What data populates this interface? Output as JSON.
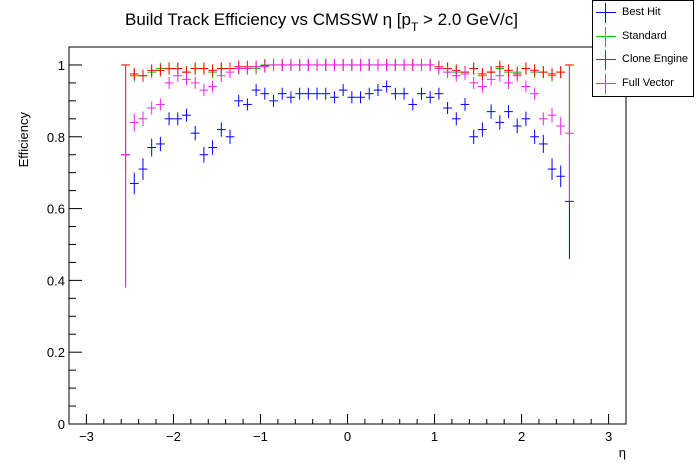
{
  "chart_data": {
    "type": "scatter",
    "title": "Build Track Efficiency vs CMSSW η [p",
    "title_sub": "T",
    "title_tail": " > 2.0 GeV/c]",
    "xlabel": "η",
    "ylabel": "Efficiency",
    "xlim": [
      -3.2,
      3.2
    ],
    "ylim": [
      0,
      1.05
    ],
    "x_ticks": [
      -3,
      -2,
      -1,
      0,
      1,
      2,
      3
    ],
    "x_tick_labels": [
      "−3",
      "−2",
      "−1",
      "0",
      "1",
      "2",
      "3"
    ],
    "y_ticks": [
      0,
      0.2,
      0.4,
      0.6,
      0.8,
      1
    ],
    "y_tick_labels": [
      "0",
      "0.2",
      "0.4",
      "0.6",
      "0.8",
      "1"
    ],
    "grid": false,
    "legend_position": "top-right",
    "bin_half_width": 0.05,
    "series": [
      {
        "name": "Best Hit",
        "color": "#0000ff",
        "x": [
          -2.55,
          -2.45,
          -2.35,
          -2.25,
          -2.15,
          -2.05,
          -1.95,
          -1.85,
          -1.75,
          -1.65,
          -1.55,
          -1.45,
          -1.35,
          -1.25,
          -1.15,
          -1.05,
          -0.95,
          -0.85,
          -0.75,
          -0.65,
          -0.55,
          -0.45,
          -0.35,
          -0.25,
          -0.15,
          -0.05,
          0.05,
          0.15,
          0.25,
          0.35,
          0.45,
          0.55,
          0.65,
          0.75,
          0.85,
          0.95,
          1.05,
          1.15,
          1.25,
          1.35,
          1.45,
          1.55,
          1.65,
          1.75,
          1.85,
          1.95,
          2.05,
          2.15,
          2.25,
          2.35,
          2.45,
          2.55
        ],
        "y": [
          0.75,
          0.67,
          0.71,
          0.77,
          0.78,
          0.85,
          0.85,
          0.86,
          0.81,
          0.75,
          0.77,
          0.82,
          0.8,
          0.9,
          0.89,
          0.93,
          0.92,
          0.9,
          0.92,
          0.91,
          0.92,
          0.92,
          0.92,
          0.92,
          0.91,
          0.93,
          0.91,
          0.91,
          0.92,
          0.93,
          0.94,
          0.92,
          0.92,
          0.89,
          0.92,
          0.91,
          0.92,
          0.88,
          0.85,
          0.89,
          0.8,
          0.82,
          0.87,
          0.84,
          0.87,
          0.83,
          0.85,
          0.8,
          0.78,
          0.71,
          0.69,
          0.62
        ],
        "yerr": [
          0.37,
          0.03,
          0.03,
          0.025,
          0.02,
          0.018,
          0.018,
          0.018,
          0.02,
          0.022,
          0.02,
          0.02,
          0.02,
          0.015,
          0.015,
          0.012,
          0.012,
          0.012,
          0.012,
          0.012,
          0.012,
          0.012,
          0.012,
          0.012,
          0.012,
          0.012,
          0.012,
          0.012,
          0.012,
          0.012,
          0.012,
          0.012,
          0.012,
          0.012,
          0.012,
          0.012,
          0.015,
          0.015,
          0.018,
          0.018,
          0.02,
          0.02,
          0.02,
          0.02,
          0.018,
          0.02,
          0.02,
          0.02,
          0.025,
          0.03,
          0.03,
          0.16
        ]
      },
      {
        "name": "Standard",
        "color": "#00cc00",
        "x": [
          -2.55,
          -2.45,
          -2.35,
          -2.25,
          -2.15,
          -2.05,
          -1.95,
          -1.85,
          -1.75,
          -1.65,
          -1.55,
          -1.45,
          -1.35,
          -1.25,
          -1.15,
          -1.05,
          -0.95,
          -0.85,
          -0.75,
          -0.65,
          -0.55,
          -0.45,
          -0.35,
          -0.25,
          -0.15,
          -0.05,
          0.05,
          0.15,
          0.25,
          0.35,
          0.45,
          0.55,
          0.65,
          0.75,
          0.85,
          0.95,
          1.05,
          1.15,
          1.25,
          1.35,
          1.45,
          1.55,
          1.65,
          1.75,
          1.85,
          1.95,
          2.05,
          2.15,
          2.25,
          2.35,
          2.45,
          2.55
        ],
        "y": [
          1.0,
          0.97,
          0.97,
          0.98,
          0.99,
          0.99,
          0.99,
          0.98,
          0.99,
          0.99,
          0.98,
          0.99,
          0.99,
          0.99,
          0.99,
          0.99,
          1.0,
          1.0,
          1.0,
          1.0,
          1.0,
          1.0,
          1.0,
          1.0,
          1.0,
          1.0,
          1.0,
          1.0,
          1.0,
          1.0,
          1.0,
          1.0,
          1.0,
          1.0,
          1.0,
          1.0,
          0.99,
          0.99,
          0.98,
          0.98,
          0.99,
          0.97,
          0.98,
          0.99,
          0.98,
          0.98,
          0.99,
          0.98,
          0.98,
          0.97,
          0.98,
          1.0
        ],
        "yerr": [
          0.3,
          0.008,
          0.008,
          0.006,
          0.005,
          0.005,
          0.005,
          0.005,
          0.005,
          0.005,
          0.005,
          0.005,
          0.004,
          0.004,
          0.004,
          0.003,
          0.003,
          0.003,
          0.003,
          0.003,
          0.003,
          0.003,
          0.003,
          0.003,
          0.003,
          0.003,
          0.003,
          0.003,
          0.003,
          0.003,
          0.003,
          0.003,
          0.003,
          0.003,
          0.003,
          0.003,
          0.004,
          0.004,
          0.004,
          0.005,
          0.005,
          0.005,
          0.005,
          0.005,
          0.005,
          0.005,
          0.005,
          0.006,
          0.006,
          0.008,
          0.008,
          0.2
        ]
      },
      {
        "name": "Clone Engine",
        "color": "#ff0000",
        "x": [
          -2.55,
          -2.45,
          -2.35,
          -2.25,
          -2.15,
          -2.05,
          -1.95,
          -1.85,
          -1.75,
          -1.65,
          -1.55,
          -1.45,
          -1.35,
          -1.25,
          -1.15,
          -1.05,
          -0.95,
          -0.85,
          -0.75,
          -0.65,
          -0.55,
          -0.45,
          -0.35,
          -0.25,
          -0.15,
          -0.05,
          0.05,
          0.15,
          0.25,
          0.35,
          0.45,
          0.55,
          0.65,
          0.75,
          0.85,
          0.95,
          1.05,
          1.15,
          1.25,
          1.35,
          1.45,
          1.55,
          1.65,
          1.75,
          1.85,
          1.95,
          2.05,
          2.15,
          2.25,
          2.35,
          2.45,
          2.55
        ],
        "y": [
          1.0,
          0.975,
          0.97,
          0.985,
          0.985,
          0.99,
          0.99,
          0.98,
          0.99,
          0.99,
          0.985,
          0.99,
          0.99,
          0.995,
          0.995,
          0.995,
          0.998,
          1.0,
          1.0,
          1.0,
          1.0,
          1.0,
          1.0,
          1.0,
          1.0,
          1.0,
          1.0,
          1.0,
          1.0,
          1.0,
          1.0,
          1.0,
          1.0,
          1.0,
          1.0,
          1.0,
          0.995,
          0.99,
          0.985,
          0.98,
          0.99,
          0.975,
          0.98,
          0.995,
          0.985,
          0.975,
          0.99,
          0.985,
          0.98,
          0.975,
          0.98,
          1.0
        ],
        "yerr": [
          0.3,
          0.008,
          0.008,
          0.006,
          0.005,
          0.005,
          0.005,
          0.005,
          0.005,
          0.005,
          0.005,
          0.005,
          0.004,
          0.004,
          0.004,
          0.003,
          0.003,
          0.003,
          0.003,
          0.003,
          0.003,
          0.003,
          0.003,
          0.003,
          0.003,
          0.003,
          0.003,
          0.003,
          0.003,
          0.003,
          0.003,
          0.003,
          0.003,
          0.003,
          0.003,
          0.003,
          0.004,
          0.004,
          0.004,
          0.005,
          0.005,
          0.005,
          0.005,
          0.005,
          0.005,
          0.005,
          0.005,
          0.006,
          0.006,
          0.008,
          0.008,
          0.2
        ]
      },
      {
        "name": "Full Vector",
        "color": "#ee22ee",
        "x": [
          -2.55,
          -2.45,
          -2.35,
          -2.25,
          -2.15,
          -2.05,
          -1.95,
          -1.85,
          -1.75,
          -1.65,
          -1.55,
          -1.45,
          -1.35,
          -1.25,
          -1.15,
          -1.05,
          -0.95,
          -0.85,
          -0.75,
          -0.65,
          -0.55,
          -0.45,
          -0.35,
          -0.25,
          -0.15,
          -0.05,
          0.05,
          0.15,
          0.25,
          0.35,
          0.45,
          0.55,
          0.65,
          0.75,
          0.85,
          0.95,
          1.05,
          1.15,
          1.25,
          1.35,
          1.45,
          1.55,
          1.65,
          1.75,
          1.85,
          1.95,
          2.05,
          2.15,
          2.25,
          2.35,
          2.45,
          2.55
        ],
        "y": [
          0.75,
          0.84,
          0.85,
          0.88,
          0.89,
          0.95,
          0.97,
          0.96,
          0.95,
          0.93,
          0.94,
          0.97,
          0.98,
          0.99,
          0.99,
          0.995,
          0.995,
          1.0,
          1.0,
          1.0,
          1.0,
          1.0,
          1.0,
          1.0,
          1.0,
          1.0,
          1.0,
          1.0,
          1.0,
          1.0,
          1.0,
          1.0,
          1.0,
          1.0,
          1.0,
          1.0,
          0.99,
          0.98,
          0.97,
          0.975,
          0.95,
          0.94,
          0.96,
          0.97,
          0.95,
          0.97,
          0.94,
          0.92,
          0.85,
          0.86,
          0.83,
          0.81
        ],
        "yerr": [
          0.37,
          0.025,
          0.02,
          0.018,
          0.015,
          0.01,
          0.008,
          0.008,
          0.008,
          0.01,
          0.01,
          0.008,
          0.006,
          0.005,
          0.005,
          0.004,
          0.003,
          0.003,
          0.003,
          0.003,
          0.003,
          0.003,
          0.003,
          0.003,
          0.003,
          0.003,
          0.003,
          0.003,
          0.003,
          0.003,
          0.003,
          0.003,
          0.003,
          0.003,
          0.003,
          0.003,
          0.005,
          0.005,
          0.006,
          0.006,
          0.008,
          0.01,
          0.008,
          0.008,
          0.008,
          0.008,
          0.01,
          0.012,
          0.018,
          0.02,
          0.025,
          0.19
        ]
      }
    ]
  }
}
